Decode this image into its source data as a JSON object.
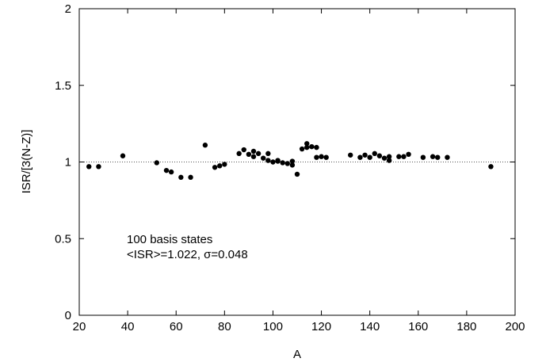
{
  "chart_data": {
    "type": "scatter",
    "xlabel": "A",
    "ylabel": "ISR/[3(N-Z)]",
    "xlim": [
      20,
      200
    ],
    "ylim": [
      0,
      2
    ],
    "xticks": [
      20,
      40,
      60,
      80,
      100,
      120,
      140,
      160,
      180,
      200
    ],
    "xtick_labels": [
      "20",
      "40",
      "60",
      "80",
      "100",
      "120",
      "140",
      "160",
      "180",
      "200"
    ],
    "yticks": [
      0,
      0.5,
      1,
      1.5,
      2
    ],
    "ytick_labels": [
      "0",
      "0.5",
      "1",
      "1.5",
      "2"
    ],
    "reference_line": {
      "y": 1,
      "style": "dotted"
    },
    "annotations": [
      "100 basis states",
      "<ISR>=1.022, σ=0.048"
    ],
    "grid": false,
    "series": [
      {
        "marker": "filled-circle",
        "color": "#000000",
        "points": [
          [
            24,
            0.97
          ],
          [
            28,
            0.97
          ],
          [
            38,
            1.04
          ],
          [
            52,
            0.995
          ],
          [
            56,
            0.945
          ],
          [
            58,
            0.935
          ],
          [
            62,
            0.9
          ],
          [
            66,
            0.9
          ],
          [
            72,
            1.11
          ],
          [
            76,
            0.965
          ],
          [
            78,
            0.975
          ],
          [
            80,
            0.985
          ],
          [
            86,
            1.055
          ],
          [
            88,
            1.08
          ],
          [
            90,
            1.05
          ],
          [
            92,
            1.07
          ],
          [
            92,
            1.035
          ],
          [
            94,
            1.055
          ],
          [
            96,
            1.025
          ],
          [
            98,
            1.055
          ],
          [
            98,
            1.01
          ],
          [
            100,
            1.0
          ],
          [
            102,
            1.01
          ],
          [
            102,
            1.005
          ],
          [
            104,
            0.995
          ],
          [
            106,
            0.99
          ],
          [
            108,
            1.005
          ],
          [
            108,
            0.98
          ],
          [
            110,
            0.92
          ],
          [
            112,
            1.085
          ],
          [
            114,
            1.12
          ],
          [
            114,
            1.095
          ],
          [
            116,
            1.1
          ],
          [
            118,
            1.095
          ],
          [
            118,
            1.03
          ],
          [
            120,
            1.035
          ],
          [
            122,
            1.03
          ],
          [
            132,
            1.045
          ],
          [
            136,
            1.03
          ],
          [
            138,
            1.045
          ],
          [
            140,
            1.03
          ],
          [
            142,
            1.055
          ],
          [
            144,
            1.04
          ],
          [
            146,
            1.025
          ],
          [
            148,
            1.035
          ],
          [
            148,
            1.01
          ],
          [
            152,
            1.035
          ],
          [
            154,
            1.035
          ],
          [
            156,
            1.05
          ],
          [
            162,
            1.03
          ],
          [
            166,
            1.035
          ],
          [
            168,
            1.03
          ],
          [
            172,
            1.03
          ],
          [
            190,
            0.97
          ]
        ]
      }
    ]
  }
}
